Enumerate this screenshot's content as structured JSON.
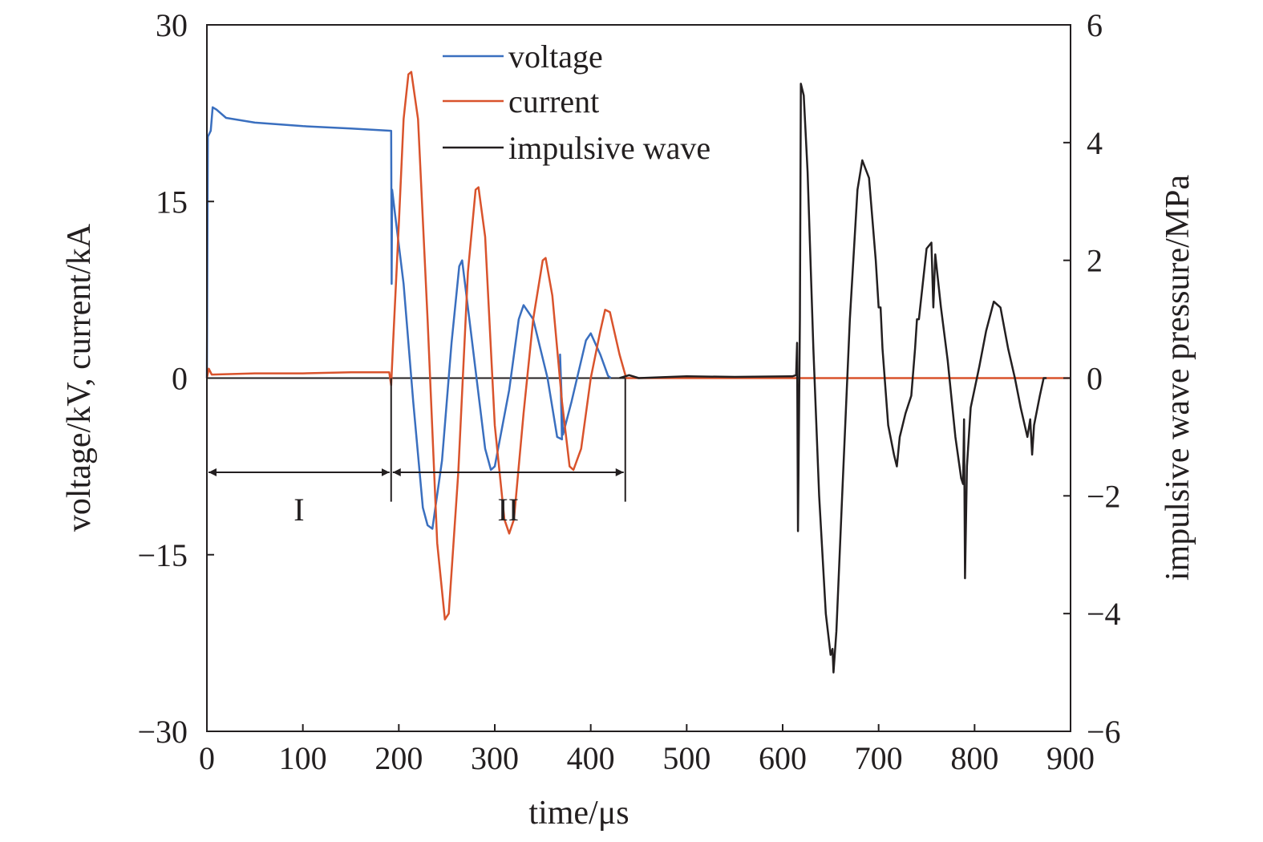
{
  "chart_data": {
    "type": "line",
    "xlabel": "time/μs",
    "ylabel_left": "voltage/kV, current/kA",
    "ylabel_right": "impulsive wave pressure/MPa",
    "xlim": [
      0,
      900
    ],
    "ylim_left": [
      -30,
      30
    ],
    "ylim_right": [
      -6,
      6
    ],
    "x_ticks": [
      "0",
      "100",
      "200",
      "300",
      "400",
      "500",
      "600",
      "700",
      "800",
      "900"
    ],
    "y_left_ticks": [
      "30",
      "15",
      "0",
      "−15",
      "−30"
    ],
    "y_right_ticks": [
      "6",
      "4",
      "2",
      "0",
      "−2",
      "−4",
      "−6"
    ],
    "grid": false,
    "legend_position": "top-center",
    "series": [
      {
        "name": "voltage",
        "color": "#3a6fbf",
        "axis": "left",
        "points": [
          [
            0,
            0
          ],
          [
            1,
            20.5
          ],
          [
            4,
            21
          ],
          [
            6,
            23
          ],
          [
            10,
            22.8
          ],
          [
            20,
            22.1
          ],
          [
            50,
            21.7
          ],
          [
            100,
            21.4
          ],
          [
            150,
            21.2
          ],
          [
            192,
            21.0
          ],
          [
            192.5,
            8
          ],
          [
            193,
            16
          ],
          [
            196,
            14
          ],
          [
            205,
            8
          ],
          [
            215,
            -2
          ],
          [
            225,
            -11
          ],
          [
            230,
            -12.5
          ],
          [
            235,
            -12.8
          ],
          [
            245,
            -7
          ],
          [
            255,
            3
          ],
          [
            263,
            9.5
          ],
          [
            266,
            10
          ],
          [
            275,
            4
          ],
          [
            290,
            -6
          ],
          [
            296,
            -7.8
          ],
          [
            300,
            -7.5
          ],
          [
            315,
            -1
          ],
          [
            325,
            5
          ],
          [
            330,
            6.2
          ],
          [
            340,
            5
          ],
          [
            355,
            0
          ],
          [
            365,
            -5
          ],
          [
            370,
            -5.2
          ],
          [
            368,
            2
          ],
          [
            371,
            -4.8
          ],
          [
            380,
            -2
          ],
          [
            395,
            3.2
          ],
          [
            400,
            3.8
          ],
          [
            410,
            2
          ],
          [
            418,
            0.2
          ],
          [
            421,
            0
          ]
        ]
      },
      {
        "name": "current",
        "color": "#d9532c",
        "axis": "left",
        "points": [
          [
            0,
            0
          ],
          [
            2,
            0.8
          ],
          [
            5,
            0.3
          ],
          [
            50,
            0.4
          ],
          [
            100,
            0.4
          ],
          [
            150,
            0.5
          ],
          [
            190,
            0.5
          ],
          [
            192,
            -0.6
          ],
          [
            194,
            3
          ],
          [
            200,
            13
          ],
          [
            205,
            22
          ],
          [
            210,
            25.8
          ],
          [
            213,
            26
          ],
          [
            220,
            22
          ],
          [
            230,
            5
          ],
          [
            240,
            -14
          ],
          [
            248,
            -20.5
          ],
          [
            252,
            -20
          ],
          [
            262,
            -8
          ],
          [
            272,
            9
          ],
          [
            280,
            16
          ],
          [
            283,
            16.2
          ],
          [
            290,
            12
          ],
          [
            300,
            -4
          ],
          [
            310,
            -12
          ],
          [
            315,
            -13.2
          ],
          [
            320,
            -12
          ],
          [
            330,
            -3
          ],
          [
            340,
            5
          ],
          [
            350,
            10
          ],
          [
            353,
            10.2
          ],
          [
            360,
            7
          ],
          [
            370,
            -2
          ],
          [
            378,
            -7.5
          ],
          [
            382,
            -7.8
          ],
          [
            390,
            -6
          ],
          [
            400,
            0
          ],
          [
            410,
            4
          ],
          [
            415,
            5.8
          ],
          [
            420,
            5.6
          ],
          [
            430,
            2
          ],
          [
            437,
            0
          ],
          [
            900,
            0
          ]
        ]
      },
      {
        "name": "impulsive wave",
        "color": "#231f20",
        "axis": "right",
        "points": [
          [
            430,
            0
          ],
          [
            440,
            0.05
          ],
          [
            450,
            0
          ],
          [
            500,
            0.03
          ],
          [
            550,
            0.02
          ],
          [
            610,
            0.03
          ],
          [
            614,
            0.05
          ],
          [
            615,
            0.6
          ],
          [
            616,
            -2.6
          ],
          [
            618,
            1
          ],
          [
            619,
            5.0
          ],
          [
            622,
            4.8
          ],
          [
            626,
            3.5
          ],
          [
            632,
            0.5
          ],
          [
            638,
            -2
          ],
          [
            645,
            -4
          ],
          [
            650,
            -4.7
          ],
          [
            652,
            -4.6
          ],
          [
            653,
            -5.0
          ],
          [
            656,
            -4.3
          ],
          [
            662,
            -2
          ],
          [
            670,
            1
          ],
          [
            678,
            3.2
          ],
          [
            683,
            3.7
          ],
          [
            690,
            3.4
          ],
          [
            697,
            2
          ],
          [
            700,
            1.2
          ],
          [
            702,
            1.2
          ],
          [
            704,
            0.5
          ],
          [
            710,
            -0.8
          ],
          [
            716,
            -1.3
          ],
          [
            719,
            -1.5
          ],
          [
            722,
            -1.0
          ],
          [
            728,
            -0.6
          ],
          [
            734,
            -0.3
          ],
          [
            738,
            0.5
          ],
          [
            740,
            1
          ],
          [
            742,
            1.0
          ],
          [
            746,
            1.6
          ],
          [
            750,
            2.2
          ],
          [
            755,
            2.3
          ],
          [
            757,
            1.2
          ],
          [
            759,
            2.1
          ],
          [
            765,
            1.2
          ],
          [
            772,
            0.3
          ],
          [
            780,
            -1
          ],
          [
            786,
            -1.7
          ],
          [
            788,
            -1.8
          ],
          [
            789,
            -0.7
          ],
          [
            790,
            -3.4
          ],
          [
            792,
            -1.5
          ],
          [
            796,
            -0.5
          ],
          [
            805,
            0.2
          ],
          [
            812,
            0.8
          ],
          [
            820,
            1.3
          ],
          [
            827,
            1.2
          ],
          [
            835,
            0.5
          ],
          [
            842,
            0
          ],
          [
            848,
            -0.5
          ],
          [
            855,
            -1.0
          ],
          [
            858,
            -0.7
          ],
          [
            860,
            -1.3
          ],
          [
            862,
            -0.8
          ],
          [
            868,
            -0.3
          ],
          [
            872,
            0
          ],
          [
            875,
            0
          ]
        ]
      }
    ],
    "annotations": [
      {
        "text": "I",
        "x_start": 0,
        "x_end": 192
      },
      {
        "text": "II",
        "x_start": 192,
        "x_end": 436
      }
    ]
  }
}
